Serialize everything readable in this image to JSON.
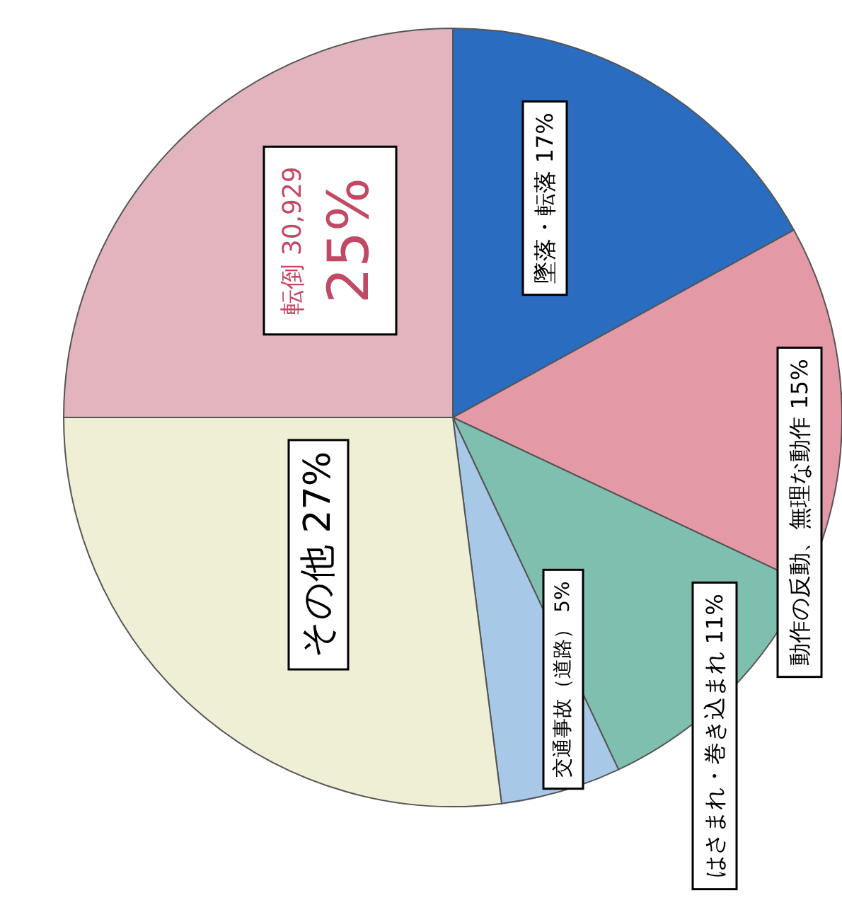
{
  "chart_data": {
    "type": "pie",
    "categories": [
      "墜落・転落",
      "動作の反動、無理な動作",
      "はさまれ・巻き込まれ",
      "交通事故（道路）",
      "その他",
      "転倒"
    ],
    "values": [
      17,
      15,
      11,
      5,
      27,
      25
    ],
    "value_labels": [
      "17%",
      "15%",
      "11%",
      "5%",
      "27%",
      "25%"
    ],
    "colors": [
      "#2a6cc0",
      "#e39aa6",
      "#7fbfb0",
      "#a8c8e8",
      "#efefd6",
      "#e2b4bd"
    ],
    "annotations": [
      {
        "text": "30,929",
        "x": "転倒"
      }
    ]
  }
}
